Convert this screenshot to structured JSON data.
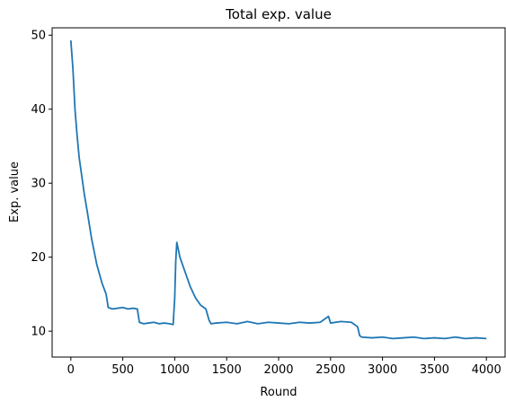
{
  "chart_data": {
    "type": "line",
    "title": "Total exp. value",
    "xlabel": "Round",
    "ylabel": "Exp. value",
    "xlim": [
      -180,
      4180
    ],
    "ylim": [
      6.5,
      51
    ],
    "xticks": [
      0,
      500,
      1000,
      1500,
      2000,
      2500,
      3000,
      3500,
      4000
    ],
    "xtick_labels": [
      "0",
      "500",
      "1000",
      "1500",
      "2000",
      "2500",
      "3000",
      "3500",
      "4000"
    ],
    "yticks": [
      10,
      20,
      30,
      40,
      50
    ],
    "ytick_labels": [
      "10",
      "20",
      "30",
      "40",
      "50"
    ],
    "grid": false,
    "legend": "none",
    "series_color": "#1f77b4",
    "series": [
      {
        "x": [
          0,
          20,
          40,
          60,
          80,
          100,
          130,
          160,
          200,
          250,
          300,
          340,
          360,
          400,
          450,
          500,
          550,
          600,
          640,
          660,
          700,
          750,
          800,
          850,
          900,
          950,
          985,
          1000,
          1010,
          1020,
          1050,
          1100,
          1150,
          1200,
          1250,
          1300,
          1330,
          1350,
          1400,
          1500,
          1600,
          1700,
          1800,
          1900,
          2000,
          2100,
          2200,
          2300,
          2400,
          2480,
          2500,
          2600,
          2700,
          2760,
          2780,
          2800,
          2900,
          3000,
          3100,
          3200,
          3300,
          3400,
          3500,
          3600,
          3700,
          3800,
          3900,
          4000
        ],
        "y": [
          49.3,
          45.5,
          40.0,
          36.5,
          33.5,
          31.5,
          28.5,
          26.0,
          22.5,
          19.0,
          16.5,
          15.0,
          13.2,
          13.0,
          13.1,
          13.2,
          13.0,
          13.1,
          13.0,
          11.2,
          11.0,
          11.1,
          11.2,
          11.0,
          11.1,
          11.0,
          10.9,
          14.5,
          19.5,
          22.0,
          20.0,
          18.0,
          16.0,
          14.5,
          13.5,
          13.0,
          11.5,
          11.0,
          11.1,
          11.2,
          11.0,
          11.3,
          11.0,
          11.2,
          11.1,
          11.0,
          11.2,
          11.1,
          11.2,
          12.0,
          11.1,
          11.3,
          11.2,
          10.6,
          9.4,
          9.2,
          9.1,
          9.2,
          9.0,
          9.1,
          9.2,
          9.0,
          9.1,
          9.0,
          9.2,
          9.0,
          9.1,
          9.0
        ]
      }
    ]
  }
}
